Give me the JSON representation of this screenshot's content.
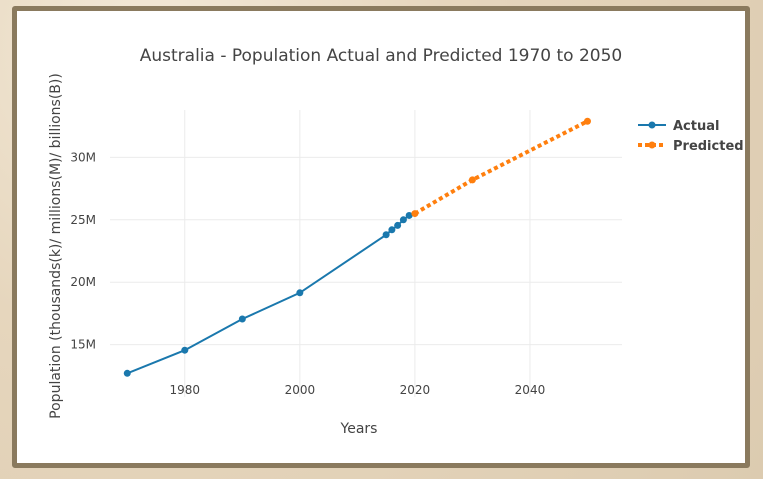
{
  "chart_data": {
    "type": "line",
    "title": "Australia - Population Actual and Predicted 1970 to 2050",
    "xlabel": "Years",
    "ylabel": "Population (thousands(k)/ millions(M)/ billions(B))",
    "x_ticks": [
      "1980",
      "2000",
      "2020",
      "2040"
    ],
    "y_ticks": [
      "15M",
      "20M",
      "25M",
      "30M"
    ],
    "x_tick_values": [
      1980,
      2000,
      2020,
      2040
    ],
    "y_tick_values": [
      15000000,
      20000000,
      25000000,
      30000000
    ],
    "xlim": [
      1967,
      2056
    ],
    "ylim": [
      10800000,
      33800000
    ],
    "grid": true,
    "legend_position": "top-right",
    "series": [
      {
        "name": "Actual",
        "color": "#1f77b4",
        "line_color": "#1a78ad",
        "style": "solid",
        "x": [
          1970,
          1980,
          1990,
          2000,
          2015,
          2016,
          2017,
          2018,
          2019
        ],
        "y": [
          12700000,
          14550000,
          17050000,
          19150000,
          23800000,
          24200000,
          24550000,
          25000000,
          25350000
        ]
      },
      {
        "name": "Predicted",
        "color": "#ff7f0e",
        "style": "dotted",
        "x": [
          2020,
          2030,
          2050
        ],
        "y": [
          25500000,
          28200000,
          32900000
        ]
      }
    ]
  }
}
